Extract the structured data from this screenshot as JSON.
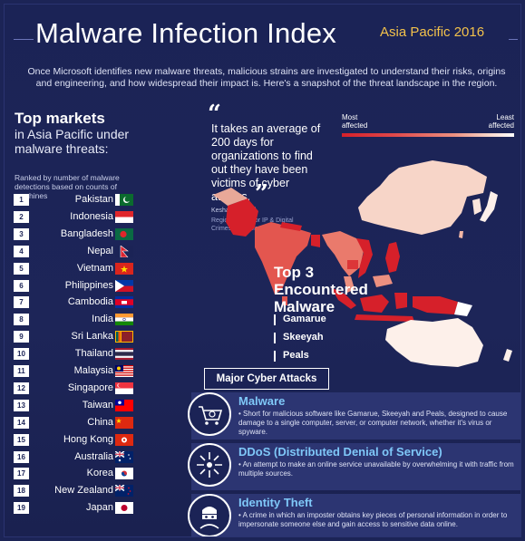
{
  "header": {
    "title": "Malware Infection Index",
    "subtitle": "Asia Pacific 2016",
    "intro": "Once Microsoft identifies new malware threats, malicious strains are investigated to understand their risks, origins and engineering, and how widespread their impact is. Here's a snapshot of the threat landscape in the region."
  },
  "top_markets": {
    "title": "Top markets",
    "subtitle": "in Asia Pacific under malware threats:",
    "note": "Ranked by number of malware detections based on counts of machines",
    "items": [
      {
        "rank": "1",
        "country": "Pakistan",
        "flag": "pakistan-flag"
      },
      {
        "rank": "2",
        "country": "Indonesia",
        "flag": "indonesia-flag"
      },
      {
        "rank": "3",
        "country": "Bangladesh",
        "flag": "bangladesh-flag"
      },
      {
        "rank": "4",
        "country": "Nepal",
        "flag": "nepal-flag"
      },
      {
        "rank": "5",
        "country": "Vietnam",
        "flag": "vietnam-flag"
      },
      {
        "rank": "6",
        "country": "Philippines",
        "flag": "philippines-flag"
      },
      {
        "rank": "7",
        "country": "Cambodia",
        "flag": "cambodia-flag"
      },
      {
        "rank": "8",
        "country": "India",
        "flag": "india-flag"
      },
      {
        "rank": "9",
        "country": "Sri Lanka",
        "flag": "sri-lanka-flag"
      },
      {
        "rank": "10",
        "country": "Thailand",
        "flag": "thailand-flag"
      },
      {
        "rank": "11",
        "country": "Malaysia",
        "flag": "malaysia-flag"
      },
      {
        "rank": "12",
        "country": "Singapore",
        "flag": "singapore-flag"
      },
      {
        "rank": "13",
        "country": "Taiwan",
        "flag": "taiwan-flag"
      },
      {
        "rank": "14",
        "country": "China",
        "flag": "china-flag"
      },
      {
        "rank": "15",
        "country": "Hong Kong",
        "flag": "hong-kong-flag"
      },
      {
        "rank": "16",
        "country": "Australia",
        "flag": "australia-flag"
      },
      {
        "rank": "17",
        "country": "Korea",
        "flag": "korea-flag"
      },
      {
        "rank": "18",
        "country": "New Zealand",
        "flag": "new-zealand-flag"
      },
      {
        "rank": "19",
        "country": "Japan",
        "flag": "japan-flag"
      }
    ]
  },
  "quote": {
    "text": "It takes an average of 200 days for organizations to find out they have been victims of cyber attacks.",
    "author": "Keshav Dhakad",
    "role": "Regional Director IP & Digital Crimes Unit, Microsoft Asia"
  },
  "legend": {
    "most": "Most affected",
    "least": "Least affected"
  },
  "colors": {
    "background": "#1c2456",
    "most_affected": "#d6202a",
    "least_affected": "#ffffff",
    "accent_gold": "#f2c14b",
    "accent_blue": "#7fc8f8"
  },
  "top3": {
    "title": "Top 3 Encountered Malware",
    "items": [
      "Gamarue",
      "Skeeyah",
      "Peals"
    ]
  },
  "attacks": {
    "title": "Major Cyber Attacks",
    "items": [
      {
        "icon": "shopping-cart-virus-icon",
        "title": "Malware",
        "desc": "• Short for malicious software like Gamarue, Skeeyah and Peals, designed to cause damage to a single computer, server, or computer network, whether it's virus or spyware."
      },
      {
        "icon": "network-burst-icon",
        "title": "DDoS (Distributed Denial of Service)",
        "desc": "• An attempt to make an online service unavailable by overwhelming it with traffic from multiple sources."
      },
      {
        "icon": "masked-thief-icon",
        "title": "Identity Theft",
        "desc": "• A crime in which an imposter obtains key pieces of personal information in order to impersonate someone else and gain access to sensitive data online."
      }
    ]
  }
}
